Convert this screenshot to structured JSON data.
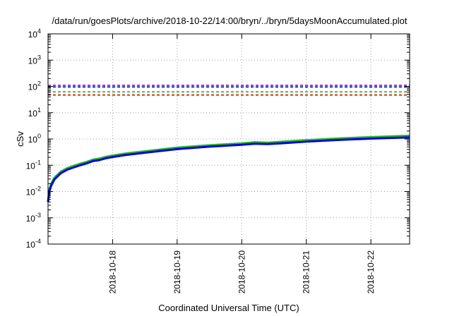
{
  "chart_data": {
    "type": "line",
    "title": "/data/run/goesPlots/archive/2018-10-22/14:00/bryn/../bryn/5daysMoonAccumulated.plot",
    "xlabel": "Coordinated Universal Time (UTC)",
    "ylabel": "cSv",
    "y_scale": "log",
    "ylim_exp": [
      -4,
      4
    ],
    "y_tick_base": "10",
    "y_tick_exponents": [
      "-4",
      "-3",
      "-2",
      "-1",
      "0",
      "1",
      "2",
      "3",
      "4"
    ],
    "x_range_days": [
      0,
      5.6
    ],
    "x_tick_labels": [
      "2018-10-18",
      "2018-10-19",
      "2018-10-20",
      "2018-10-21",
      "2018-10-22"
    ],
    "x_tick_positions_days": [
      1.0,
      2.0,
      3.0,
      4.0,
      5.0
    ],
    "grid": true,
    "thresholds": [
      {
        "value": 110,
        "color": "#9400d3",
        "style": "dashed"
      },
      {
        "value": 95,
        "color": "#0000cc",
        "style": "dashed"
      },
      {
        "value": 62,
        "color": "#00cc00",
        "style": "dashed"
      },
      {
        "value": 47,
        "color": "#dd0000",
        "style": "dashed"
      }
    ],
    "series": [
      {
        "color": "#22bb22",
        "x": [
          0,
          0.02,
          0.05,
          0.1,
          0.2,
          0.3,
          0.4,
          0.5,
          0.6,
          0.7,
          0.8,
          0.9,
          1.0,
          1.2,
          1.5,
          2.0,
          2.5,
          3.0,
          3.2,
          3.4,
          3.6,
          4.0,
          4.5,
          5.0,
          5.6
        ],
        "values": [
          0.004,
          0.012,
          0.02,
          0.034,
          0.058,
          0.078,
          0.095,
          0.115,
          0.135,
          0.165,
          0.18,
          0.21,
          0.235,
          0.28,
          0.34,
          0.47,
          0.58,
          0.68,
          0.75,
          0.72,
          0.78,
          0.9,
          1.05,
          1.18,
          1.33
        ]
      },
      {
        "color": "#0000dd",
        "x": [
          0,
          0.02,
          0.05,
          0.1,
          0.2,
          0.3,
          0.4,
          0.5,
          0.6,
          0.7,
          0.8,
          0.9,
          1.0,
          1.2,
          1.5,
          2.0,
          2.5,
          3.0,
          3.2,
          3.4,
          3.6,
          4.0,
          4.5,
          5.0,
          5.6
        ],
        "values": [
          0.004,
          0.01,
          0.017,
          0.029,
          0.05,
          0.068,
          0.083,
          0.1,
          0.118,
          0.145,
          0.158,
          0.185,
          0.205,
          0.245,
          0.3,
          0.41,
          0.51,
          0.6,
          0.66,
          0.64,
          0.68,
          0.79,
          0.92,
          1.03,
          1.15
        ]
      }
    ]
  }
}
